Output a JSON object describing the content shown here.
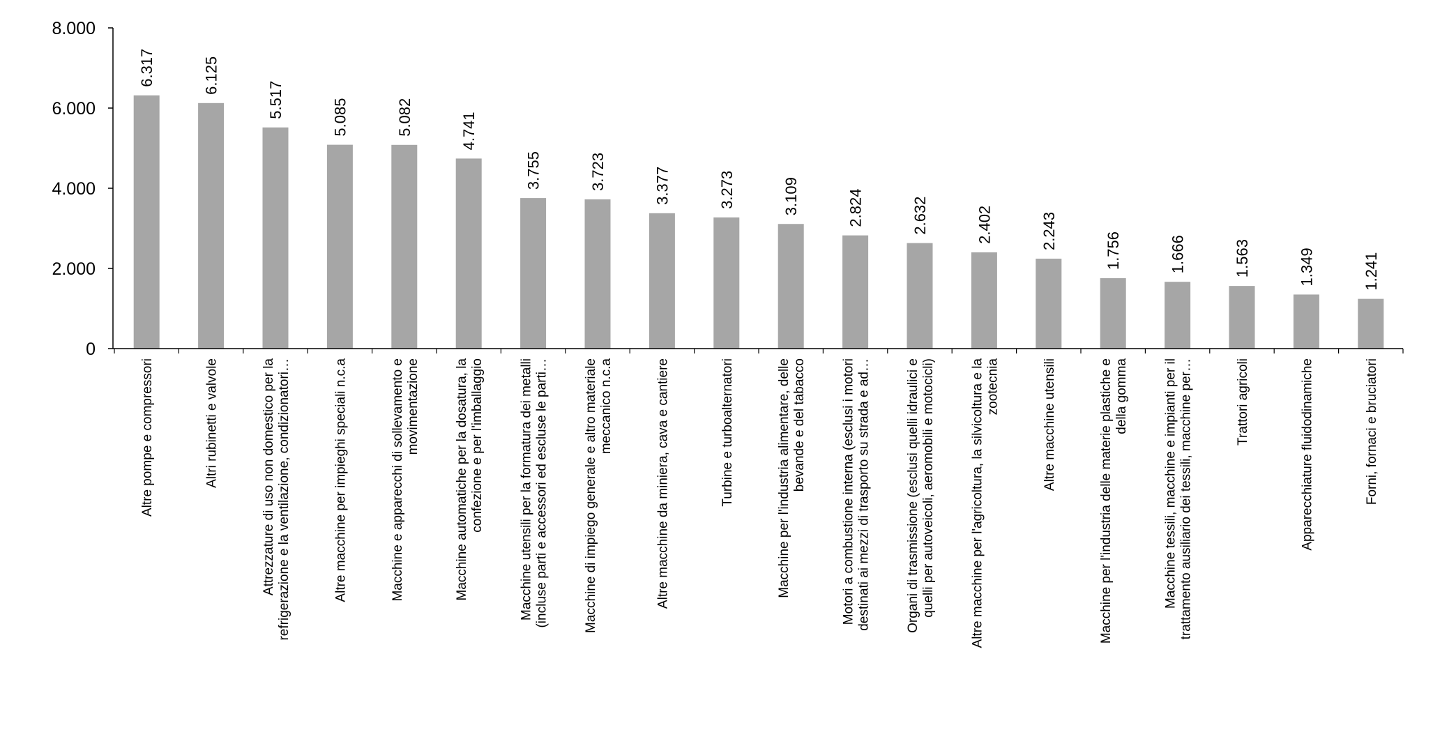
{
  "chart_data": {
    "type": "bar",
    "title": "",
    "xlabel": "",
    "ylabel": "",
    "ylim": [
      0,
      8000
    ],
    "yticks": [
      0,
      2000,
      4000,
      6000,
      8000
    ],
    "ytick_labels": [
      "0",
      "2.000",
      "4.000",
      "6.000",
      "8.000"
    ],
    "grid": false,
    "legend": "none",
    "bar_color": "#a6a6a6",
    "categories": [
      "Altre pompe e compressori",
      "Altri rubinetti e valvole",
      "Attrezzature di uso non domestico per la refrigerazione e la ventilazione, condizionatori…",
      "Altre macchine per impieghi speciali n.c.a",
      "Macchine e apparecchi di sollevamento e movimentazione",
      "Macchine automatiche per la dosatura, la confezione e per l'imballaggio",
      "Macchine utensili per la formatura dei metalli (incluse parti e accessori ed escluse le parti…",
      "Macchine di impiego generale e altro materiale meccanico n.c.a",
      "Altre macchine da miniera, cava e cantiere",
      "Turbine e turboalternatori",
      "Macchine per l'industria alimentare, delle bevande e del tabacco",
      "Motori a combustione interna (esclusi i motori destinati ai mezzi di trasporto su strada e ad…",
      "Organi di trasmissione (esclusi quelli idraulici e quelli per autoveicoli, aeromobili e motocicli)",
      "Altre macchine per l'agricoltura, la silvicoltura e la zootecnia",
      "Altre macchine utensili",
      "Macchine per l'industria delle materie plastiche e della gomma",
      "Macchine tessili, macchine e impianti per il trattamento ausiliario dei tessili, macchine per…",
      "Trattori agricoli",
      "Apparecchiature fluidodinamiche",
      "Forni, fornaci e bruciatori"
    ],
    "category_label_lines": [
      [
        "Altre pompe e compressori"
      ],
      [
        "Altri rubinetti e valvole"
      ],
      [
        "Attrezzature di uso non domestico per la",
        "refrigerazione e la ventilazione, condizionatori…"
      ],
      [
        "Altre macchine per impieghi speciali n.c.a"
      ],
      [
        "Macchine e apparecchi di sollevamento e",
        "movimentazione"
      ],
      [
        "Macchine automatiche per la dosatura, la",
        "confezione e per l'imballaggio"
      ],
      [
        "Macchine utensili per la formatura dei metalli",
        "(incluse parti e accessori ed escluse le parti…"
      ],
      [
        "Macchine di impiego generale e altro materiale",
        "meccanico n.c.a"
      ],
      [
        "Altre macchine da miniera, cava e cantiere"
      ],
      [
        "Turbine e turboalternatori"
      ],
      [
        "Macchine per l'industria alimentare, delle",
        "bevande e del tabacco"
      ],
      [
        "Motori a combustione interna (esclusi i motori",
        "destinati ai mezzi di trasporto su strada e ad…"
      ],
      [
        "Organi di trasmissione (esclusi quelli idraulici e",
        "quelli per autoveicoli, aeromobili e motocicli)"
      ],
      [
        "Altre macchine per l'agricoltura, la silvicoltura e la",
        "zootecnia"
      ],
      [
        "Altre macchine utensili"
      ],
      [
        "Macchine per l'industria delle materie plastiche e",
        "della gomma"
      ],
      [
        "Macchine tessili, macchine e impianti per il",
        "trattamento ausiliario dei tessili, macchine per…"
      ],
      [
        "Trattori agricoli"
      ],
      [
        "Apparecchiature fluidodinamiche"
      ],
      [
        "Forni, fornaci e bruciatori"
      ]
    ],
    "values": [
      6317,
      6125,
      5517,
      5085,
      5082,
      4741,
      3755,
      3723,
      3377,
      3273,
      3109,
      2824,
      2632,
      2402,
      2243,
      1756,
      1666,
      1563,
      1349,
      1241
    ],
    "value_labels": [
      "6.317",
      "6.125",
      "5.517",
      "5.085",
      "5.082",
      "4.741",
      "3.755",
      "3.723",
      "3.377",
      "3.273",
      "3.109",
      "2.824",
      "2.632",
      "2.402",
      "2.243",
      "1.756",
      "1.666",
      "1.563",
      "1.349",
      "1.241"
    ]
  }
}
